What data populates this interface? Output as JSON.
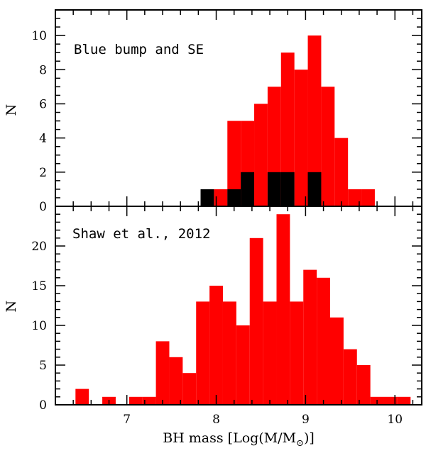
{
  "chart_data": [
    {
      "type": "bar",
      "annotation": "Blue bump and SE",
      "ylabel": "N",
      "xlabel": "",
      "xlim": [
        6.2,
        10.3
      ],
      "ylim": [
        0,
        11.5
      ],
      "yticks": [
        "0",
        "2",
        "4",
        "6",
        "8",
        "10"
      ],
      "bin_width": 0.15,
      "colors": {
        "red": "#ff0000",
        "black": "#000000"
      },
      "series": [
        {
          "color": "red",
          "bins": [
            {
              "x": 8.2,
              "y": 5
            },
            {
              "x": 8.35,
              "y": 5
            },
            {
              "x": 8.5,
              "y": 6
            },
            {
              "x": 8.65,
              "y": 7
            },
            {
              "x": 8.8,
              "y": 9
            },
            {
              "x": 8.95,
              "y": 8
            },
            {
              "x": 9.1,
              "y": 10
            },
            {
              "x": 9.25,
              "y": 7
            },
            {
              "x": 9.4,
              "y": 4
            },
            {
              "x": 9.55,
              "y": 1
            },
            {
              "x": 9.7,
              "y": 1
            },
            {
              "x": 8.05,
              "y": 1
            }
          ]
        },
        {
          "color": "black",
          "bins": [
            {
              "x": 7.9,
              "y": 1
            },
            {
              "x": 8.2,
              "y": 1
            },
            {
              "x": 8.35,
              "y": 2
            },
            {
              "x": 8.65,
              "y": 2
            },
            {
              "x": 8.8,
              "y": 2
            },
            {
              "x": 9.1,
              "y": 2
            }
          ]
        }
      ]
    },
    {
      "type": "bar",
      "annotation": "Shaw et al., 2012",
      "ylabel": "N",
      "xlabel": "BH mass [Log(M/M",
      "xlabel_sub": "⊙",
      "xlabel_end": ")]",
      "xlim": [
        6.2,
        10.3
      ],
      "ylim": [
        0,
        25
      ],
      "yticks": [
        "0",
        "5",
        "10",
        "15",
        "20"
      ],
      "xticks": [
        "7",
        "8",
        "9",
        "10"
      ],
      "bin_width": 0.15,
      "colors": {
        "red": "#ff0000"
      },
      "series": [
        {
          "color": "red",
          "bins": [
            {
              "x": 6.5,
              "y": 2
            },
            {
              "x": 6.8,
              "y": 1
            },
            {
              "x": 7.1,
              "y": 1
            },
            {
              "x": 7.25,
              "y": 1
            },
            {
              "x": 7.4,
              "y": 8
            },
            {
              "x": 7.55,
              "y": 6
            },
            {
              "x": 7.7,
              "y": 4
            },
            {
              "x": 7.85,
              "y": 13
            },
            {
              "x": 8.0,
              "y": 15
            },
            {
              "x": 8.15,
              "y": 13
            },
            {
              "x": 8.3,
              "y": 10
            },
            {
              "x": 8.45,
              "y": 21
            },
            {
              "x": 8.6,
              "y": 13
            },
            {
              "x": 8.75,
              "y": 24
            },
            {
              "x": 8.9,
              "y": 13
            },
            {
              "x": 9.05,
              "y": 17
            },
            {
              "x": 9.2,
              "y": 16
            },
            {
              "x": 9.35,
              "y": 11
            },
            {
              "x": 9.5,
              "y": 7
            },
            {
              "x": 9.65,
              "y": 5
            },
            {
              "x": 9.8,
              "y": 1
            },
            {
              "x": 9.95,
              "y": 1
            },
            {
              "x": 10.1,
              "y": 1
            }
          ]
        }
      ]
    }
  ]
}
